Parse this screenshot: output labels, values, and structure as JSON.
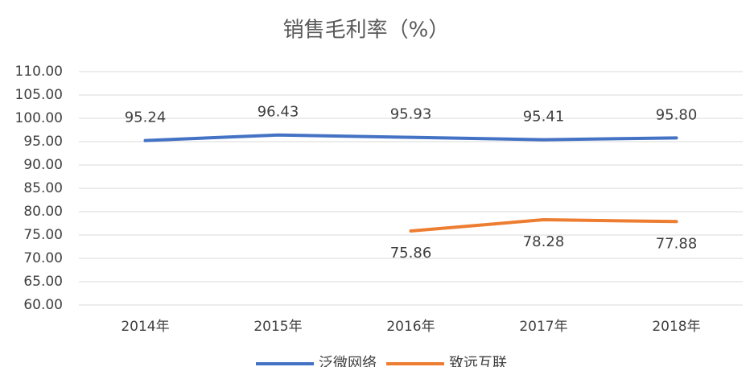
{
  "chart_data": {
    "type": "line",
    "title": "销售毛利率（%）",
    "categories": [
      "2014年",
      "2015年",
      "2016年",
      "2017年",
      "2018年"
    ],
    "series": [
      {
        "name": "泛微网络",
        "color": "#4472c4",
        "values": [
          95.24,
          96.43,
          95.93,
          95.41,
          95.8
        ],
        "value_labels": [
          "95.24",
          "96.43",
          "95.93",
          "95.41",
          "95.80"
        ]
      },
      {
        "name": "致远互联",
        "color": "#ed7d31",
        "values": [
          null,
          null,
          75.86,
          78.28,
          77.88
        ],
        "value_labels": [
          null,
          null,
          "75.86",
          "78.28",
          "77.88"
        ]
      }
    ],
    "ylim": [
      60,
      110
    ],
    "yticks": [
      {
        "value": 60,
        "label": "60.00"
      },
      {
        "value": 65,
        "label": "65.00"
      },
      {
        "value": 70,
        "label": "70.00"
      },
      {
        "value": 75,
        "label": "75.00"
      },
      {
        "value": 80,
        "label": "80.00"
      },
      {
        "value": 85,
        "label": "85.00"
      },
      {
        "value": 90,
        "label": "90.00"
      },
      {
        "value": 95,
        "label": "95.00"
      },
      {
        "value": 100,
        "label": "100.00"
      },
      {
        "value": 105,
        "label": "105.00"
      },
      {
        "value": 110,
        "label": "110.00"
      }
    ],
    "grid": true,
    "legend": "bottom"
  }
}
